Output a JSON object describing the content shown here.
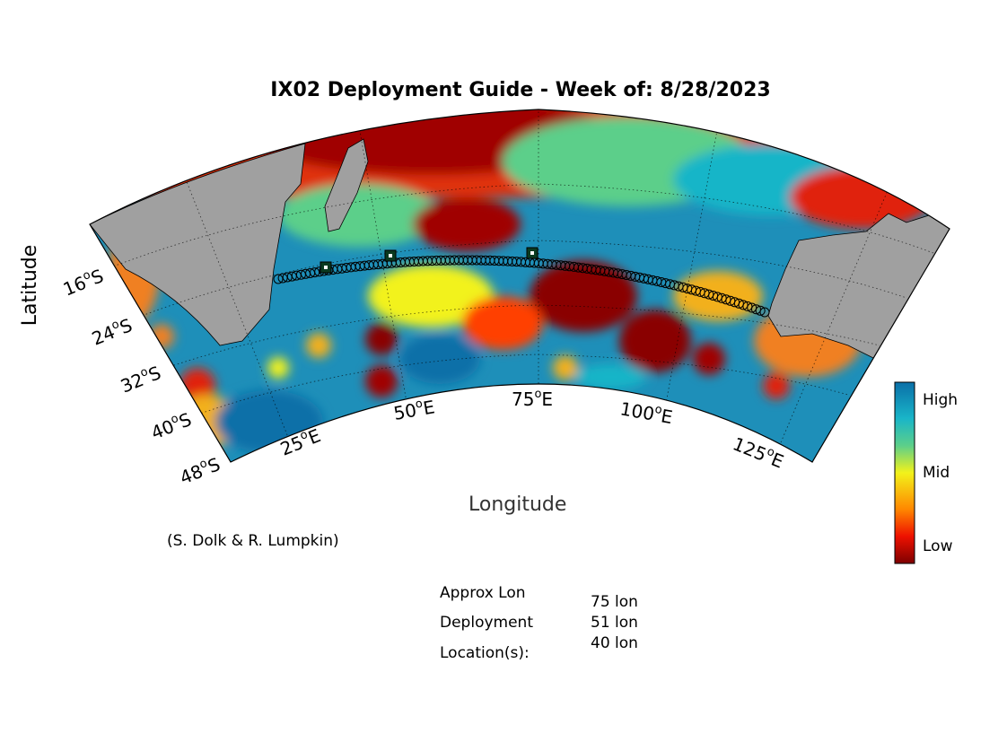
{
  "title": "IX02 Deployment Guide - Week of: 8/28/2023",
  "axes": {
    "xlabel": "Longitude",
    "ylabel": "Latitude"
  },
  "lon_ticks": [
    "25",
    "50",
    "75",
    "100",
    "125"
  ],
  "lon_suffix": "E",
  "lat_ticks": [
    "16",
    "24",
    "32",
    "40",
    "48"
  ],
  "lat_suffix": "S",
  "degree_mark": "o",
  "credit": "(S. Dolk & R. Lumpkin)",
  "deployment": {
    "label_lines": [
      "Approx Lon",
      "Deployment",
      "Location(s):"
    ],
    "values": [
      "75 lon",
      "51 lon",
      "40 lon"
    ]
  },
  "colorbar": {
    "high": "High",
    "mid": "Mid",
    "low": "Low"
  },
  "colors": {
    "land": "#a0a0a0",
    "high": "#0a6fa8",
    "mid": "#f2f21a",
    "low": "#7e0000"
  }
}
